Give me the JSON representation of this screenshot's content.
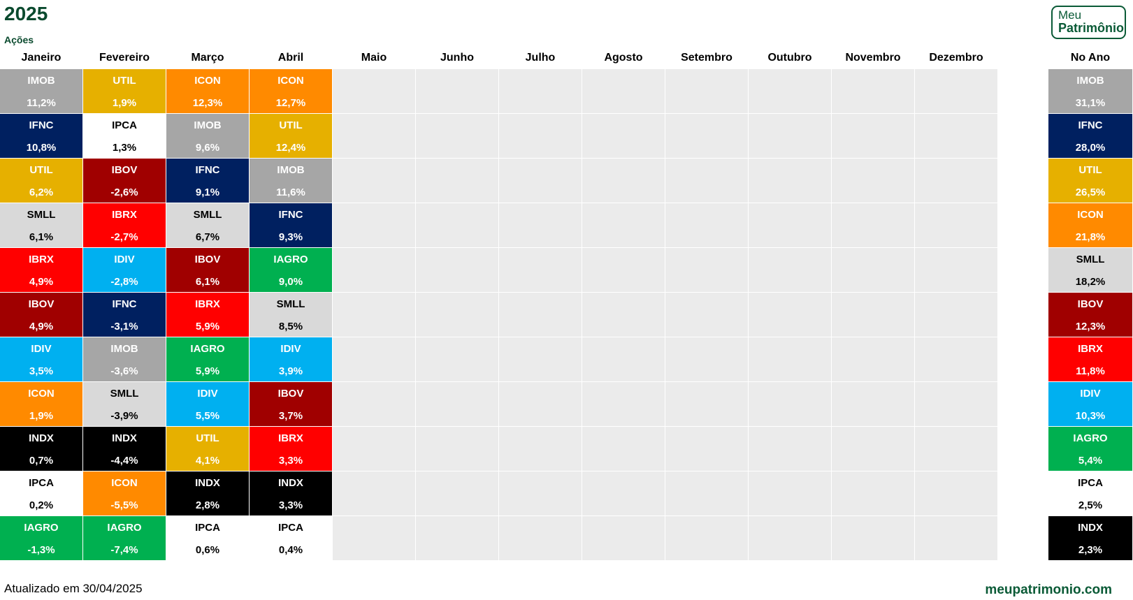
{
  "header": {
    "title": "2025",
    "subtitle": "Ações"
  },
  "logo": {
    "line1": "Meu",
    "line2": "Patrimônio"
  },
  "footer": {
    "updated": "Atualizado em 30/04/2025",
    "site": "meupatrimonio.com"
  },
  "colors": {
    "IMOB": "#a6a6a6",
    "UTIL": "#e6b000",
    "ICON": "#ff8a00",
    "IFNC": "#002060",
    "IPCA": "#ffffff",
    "IBOV": "#a00000",
    "SMLL": "#d9d9d9",
    "IBRX": "#ff0000",
    "IDIV": "#00b0f0",
    "IAGRO": "#00b050",
    "INDX": "#000000"
  },
  "chart_data": {
    "type": "table",
    "months": [
      "Janeiro",
      "Fevereiro",
      "Março",
      "Abril",
      "Maio",
      "Junho",
      "Julho",
      "Agosto",
      "Setembro",
      "Outubro",
      "Novembro",
      "Dezembro"
    ],
    "year_label": "No Ano",
    "columns": [
      [
        [
          "IMOB",
          "11,2%"
        ],
        [
          "IFNC",
          "10,8%"
        ],
        [
          "UTIL",
          "6,2%"
        ],
        [
          "SMLL",
          "6,1%"
        ],
        [
          "IBRX",
          "4,9%"
        ],
        [
          "IBOV",
          "4,9%"
        ],
        [
          "IDIV",
          "3,5%"
        ],
        [
          "ICON",
          "1,9%"
        ],
        [
          "INDX",
          "0,7%"
        ],
        [
          "IPCA",
          "0,2%"
        ],
        [
          "IAGRO",
          "-1,3%"
        ]
      ],
      [
        [
          "UTIL",
          "1,9%"
        ],
        [
          "IPCA",
          "1,3%"
        ],
        [
          "IBOV",
          "-2,6%"
        ],
        [
          "IBRX",
          "-2,7%"
        ],
        [
          "IDIV",
          "-2,8%"
        ],
        [
          "IFNC",
          "-3,1%"
        ],
        [
          "IMOB",
          "-3,6%"
        ],
        [
          "SMLL",
          "-3,9%"
        ],
        [
          "INDX",
          "-4,4%"
        ],
        [
          "ICON",
          "-5,5%"
        ],
        [
          "IAGRO",
          "-7,4%"
        ]
      ],
      [
        [
          "ICON",
          "12,3%"
        ],
        [
          "IMOB",
          "9,6%"
        ],
        [
          "IFNC",
          "9,1%"
        ],
        [
          "SMLL",
          "6,7%"
        ],
        [
          "IBOV",
          "6,1%"
        ],
        [
          "IBRX",
          "5,9%"
        ],
        [
          "IAGRO",
          "5,9%"
        ],
        [
          "IDIV",
          "5,5%"
        ],
        [
          "UTIL",
          "4,1%"
        ],
        [
          "INDX",
          "2,8%"
        ],
        [
          "IPCA",
          "0,6%"
        ]
      ],
      [
        [
          "ICON",
          "12,7%"
        ],
        [
          "UTIL",
          "12,4%"
        ],
        [
          "IMOB",
          "11,6%"
        ],
        [
          "IFNC",
          "9,3%"
        ],
        [
          "IAGRO",
          "9,0%"
        ],
        [
          "SMLL",
          "8,5%"
        ],
        [
          "IDIV",
          "3,9%"
        ],
        [
          "IBOV",
          "3,7%"
        ],
        [
          "IBRX",
          "3,3%"
        ],
        [
          "INDX",
          "3,3%"
        ],
        [
          "IPCA",
          "0,4%"
        ]
      ]
    ],
    "year": [
      [
        "IMOB",
        "31,1%"
      ],
      [
        "IFNC",
        "28,0%"
      ],
      [
        "UTIL",
        "26,5%"
      ],
      [
        "ICON",
        "21,8%"
      ],
      [
        "SMLL",
        "18,2%"
      ],
      [
        "IBOV",
        "12,3%"
      ],
      [
        "IBRX",
        "11,8%"
      ],
      [
        "IDIV",
        "10,3%"
      ],
      [
        "IAGRO",
        "5,4%"
      ],
      [
        "IPCA",
        "2,5%"
      ],
      [
        "INDX",
        "2,3%"
      ]
    ]
  }
}
